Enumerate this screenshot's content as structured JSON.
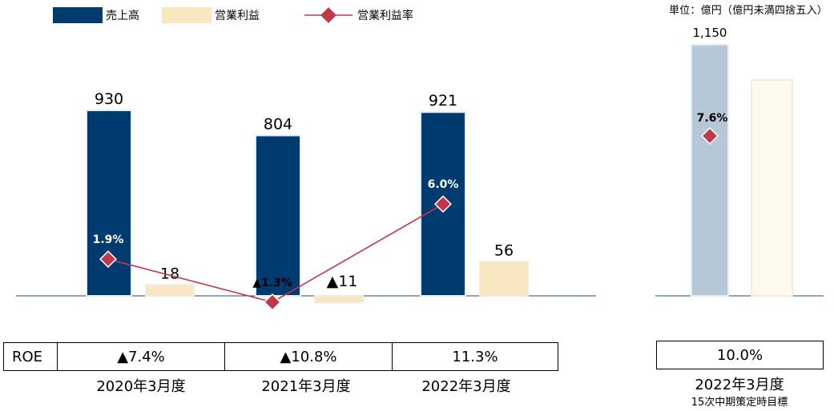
{
  "unit_note": "単位：億円（億円未満四捨五入）",
  "legend": [
    {
      "label": "売上高",
      "color": "#003B6F"
    },
    {
      "label": "営業利益",
      "color": "#F8E7C0"
    },
    {
      "label": "営業利益率",
      "color": "#C0394B"
    }
  ],
  "roe": {
    "header": "ROE",
    "values": [
      "▲7.4%",
      "▲10.8%",
      "11.3%"
    ],
    "target_value": "10.0%"
  },
  "periods": [
    "2020年3月度",
    "2021年3月度",
    "2022年3月度"
  ],
  "target": {
    "period": "2022年3月度",
    "caption": "15次中期策定時目標"
  },
  "chart_data": {
    "type": "bar",
    "categories": [
      "2020年3月度",
      "2021年3月度",
      "2022年3月度"
    ],
    "series": [
      {
        "name": "売上高",
        "values": [
          930,
          804,
          921
        ],
        "labels": [
          "930",
          "804",
          "921"
        ]
      },
      {
        "name": "営業利益",
        "values": [
          18,
          -11,
          56
        ],
        "labels": [
          "18",
          "▲11",
          "56"
        ]
      }
    ],
    "line_series": {
      "name": "営業利益率",
      "values": [
        1.9,
        -1.3,
        6.0
      ],
      "labels": [
        "1.9%",
        "▲1.3%",
        "6.0%"
      ]
    },
    "target": {
      "category": "2022年3月度",
      "sales": 1150,
      "sales_label": "1,150",
      "operating_profit": null,
      "margin": 7.6,
      "margin_label": "7.6%"
    },
    "colors": {
      "sales": "#003B6F",
      "profit": "#F8E7C0",
      "line": "#C0394B",
      "target_sales": "#B6C7D6",
      "target_profit": "#FDF9EE",
      "axis": "#1F4E79"
    }
  }
}
